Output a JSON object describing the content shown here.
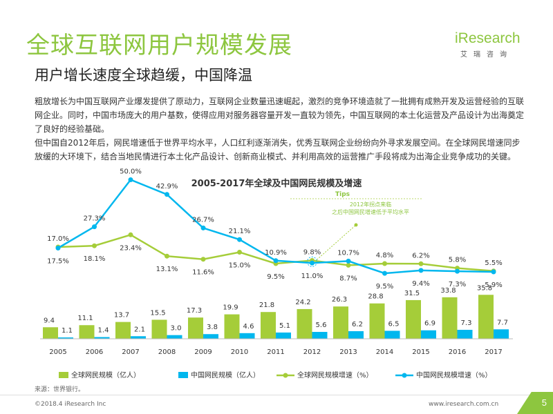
{
  "header": {
    "title": "全球互联网用户规模发展",
    "subtitle": "用户增长速度全球趋缓，中国降温"
  },
  "logo": {
    "main": "iResearch",
    "sub": "艾瑞咨询"
  },
  "body": {
    "paragraph1": "粗放增长为中国互联网产业爆发提供了原动力，互联网企业数量迅速崛起，激烈的竞争环境造就了一批拥有成熟开发及运营经验的互联网企业。同时，中国市场庞大的用户基数，使得应用对服务器容量开发一直较为领先，中国互联网的本土化运营及产品设计为出海奠定了良好的经验基础。",
    "paragraph2": "但中国自2012年后，网民增速低于世界平均水平，人口红利逐渐消失，优秀互联网企业纷纷向外寻求发展空间。在全球网民增速同步放缓的大环境下，结合当地民情进行本土化产品设计、创新商业模式、并利用高效的运营推广手段将成为出海企业竞争成功的关键。"
  },
  "chart_data": {
    "type": "bar",
    "title": "2005-2017年全球及中国网民规模及增速",
    "categories": [
      "2005",
      "2006",
      "2007",
      "2008",
      "2009",
      "2010",
      "2011",
      "2012",
      "2013",
      "2014",
      "2015",
      "2016",
      "2017"
    ],
    "series": [
      {
        "name": "全球网民规模（亿人）",
        "kind": "bar",
        "color": "#a5cd39",
        "values": [
          9.4,
          11.1,
          13.7,
          15.5,
          17.3,
          19.9,
          21.8,
          24.2,
          26.3,
          28.8,
          31.5,
          33.8,
          35.8
        ]
      },
      {
        "name": "中国网民规模（亿人）",
        "kind": "bar",
        "color": "#00b7ee",
        "values": [
          1.1,
          1.4,
          2.1,
          3.0,
          3.8,
          4.6,
          5.1,
          5.6,
          6.2,
          6.5,
          6.9,
          7.3,
          7.7
        ]
      },
      {
        "name": "全球网民规模增速（%）",
        "kind": "line",
        "color": "#a5cd39",
        "values": [
          17.5,
          18.1,
          23.4,
          13.1,
          11.6,
          15.0,
          9.5,
          11.0,
          8.7,
          9.5,
          9.4,
          7.3,
          5.9
        ],
        "labels": [
          "17.5%",
          "18.1%",
          "23.4%",
          "13.1%",
          "11.6%",
          "15.0%",
          "9.5%",
          "11.0%",
          "8.7%",
          "9.5%",
          "9.4%",
          "7.3%",
          "5.9%"
        ]
      },
      {
        "name": "中国网民规模增速（%）",
        "kind": "line",
        "color": "#00b7ee",
        "values": [
          17.0,
          27.3,
          50.0,
          42.9,
          26.7,
          21.1,
          10.9,
          9.8,
          10.7,
          4.8,
          6.2,
          5.8,
          5.5
        ],
        "labels": [
          "17.0%",
          "27.3%",
          "50.0%",
          "42.9%",
          "26.7%",
          "21.1%",
          "10.9%",
          "9.8%",
          "10.7%",
          "4.8%",
          "6.2%",
          "5.8%",
          "5.5%"
        ]
      }
    ],
    "bar_labels": {
      "global": [
        "9.4",
        "11.1",
        "13.7",
        "15.5",
        "17.3",
        "19.9",
        "21.8",
        "24.2",
        "26.3",
        "28.8",
        "31.5",
        "33.8",
        "35.8"
      ],
      "china": [
        "1.1",
        "1.4",
        "2.1",
        "3.0",
        "3.8",
        "4.6",
        "5.1",
        "5.6",
        "6.2",
        "6.5",
        "6.9",
        "7.3",
        "7.7"
      ]
    },
    "annotation": {
      "tag": "Tips",
      "text_line1": "2012年拐点来临",
      "text_line2": "之后中国网民增速低于平均水平"
    },
    "legend_position": "bottom",
    "grid": false
  },
  "source": "来源：世界银行。",
  "footer": {
    "copyright": "©2018.4 iResearch Inc",
    "url": "www.iresearch.com.cn",
    "page": "5"
  }
}
